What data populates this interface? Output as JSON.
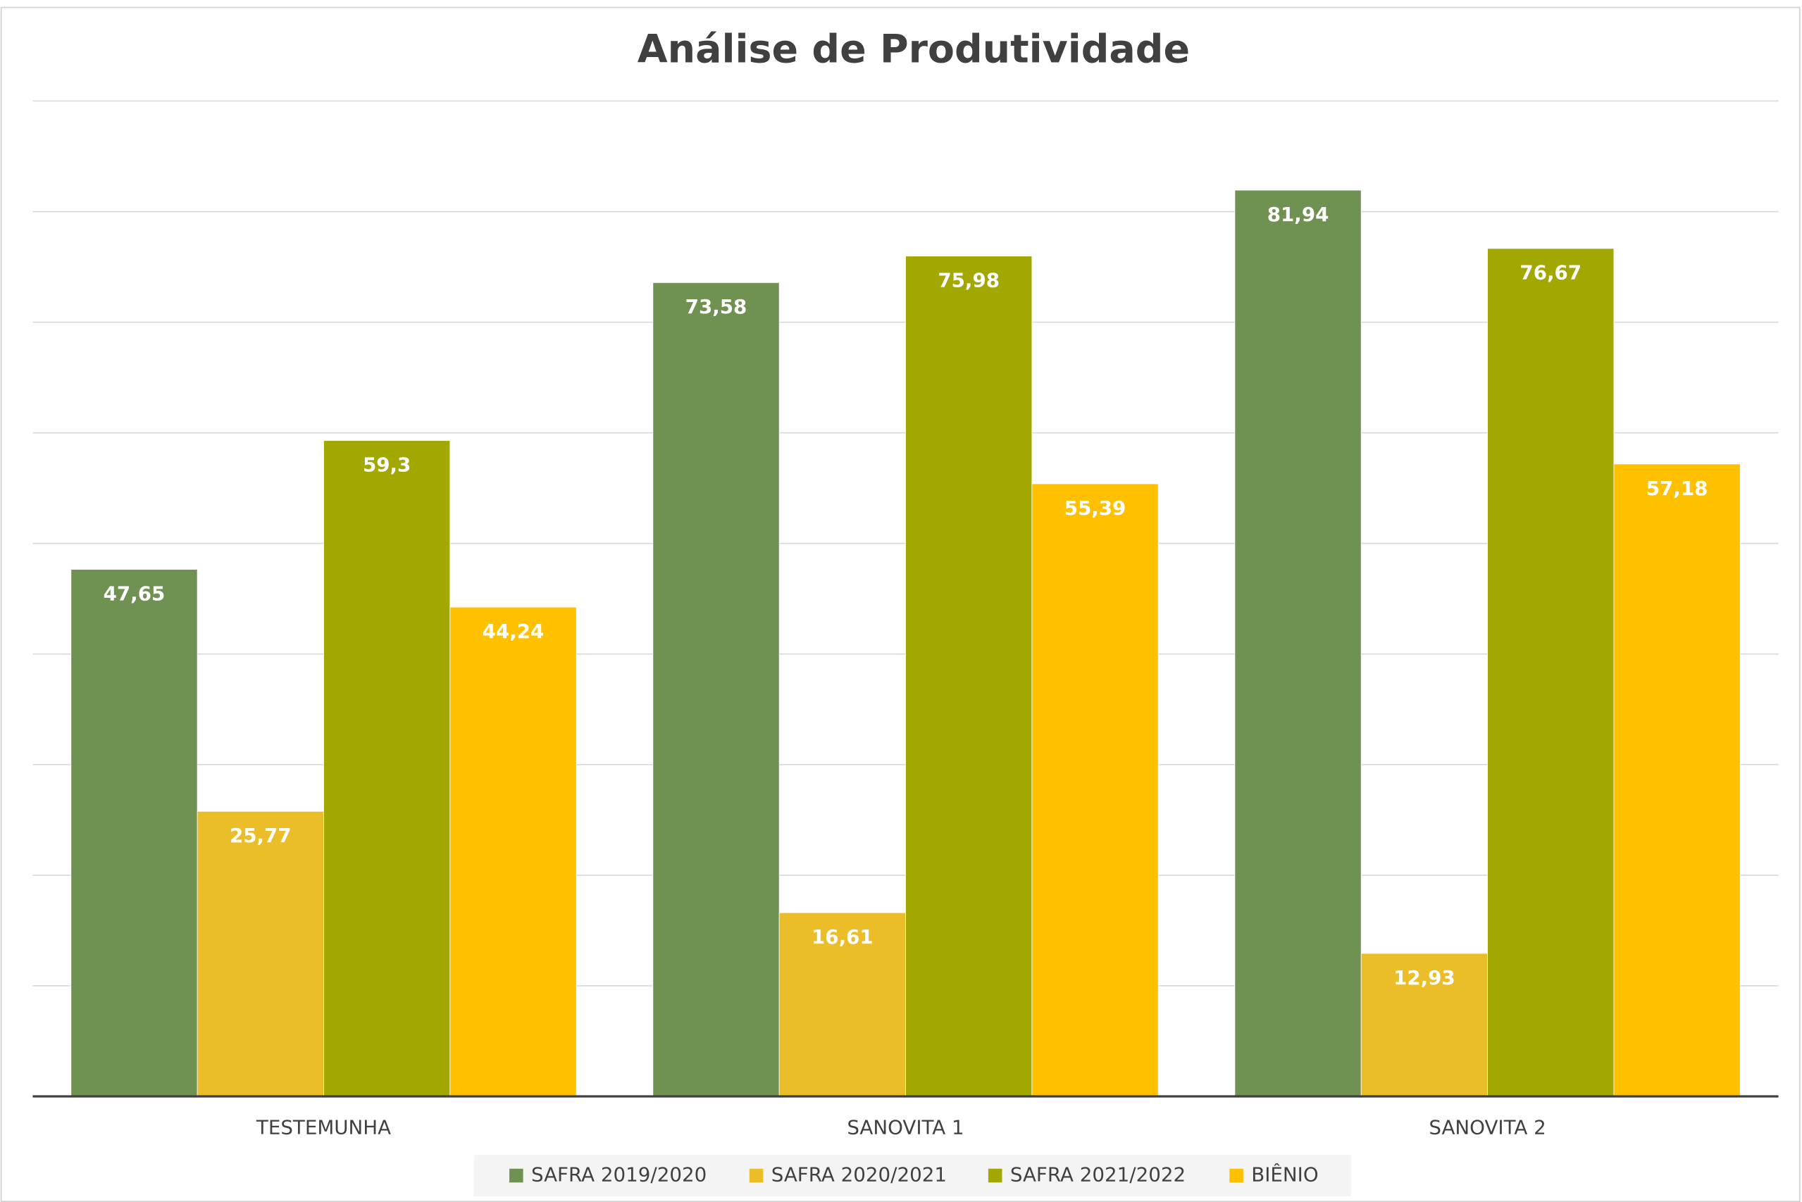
{
  "chart_data": {
    "type": "bar",
    "title": "Análise de Produtividade",
    "categories": [
      "TESTEMUNHA",
      "SANOVITA 1",
      "SANOVITA 2"
    ],
    "series": [
      {
        "name": "SAFRA 2019/2020",
        "color": "#6f9152",
        "values": [
          47.65,
          73.58,
          81.94
        ],
        "value_labels": [
          "47,65",
          "73,58",
          "81,94"
        ]
      },
      {
        "name": "SAFRA 2020/2021",
        "color": "#ebbd29",
        "values": [
          25.77,
          16.61,
          12.93
        ],
        "value_labels": [
          "25,77",
          "16,61",
          "12,93"
        ]
      },
      {
        "name": "SAFRA 2021/2022",
        "color": "#a3a800",
        "values": [
          59.3,
          75.98,
          76.67
        ],
        "value_labels": [
          "59,3",
          "75,98",
          "76,67"
        ]
      },
      {
        "name": "BIÊNIO",
        "color": "#ffc000",
        "values": [
          44.24,
          55.39,
          57.18
        ],
        "value_labels": [
          "44,24",
          "55,39",
          "57,18"
        ]
      }
    ],
    "ylim": [
      0,
      90
    ],
    "yticks": [
      0,
      10,
      20,
      30,
      40,
      50,
      60,
      70,
      80,
      90
    ],
    "grid": true,
    "legend": "bottom"
  }
}
